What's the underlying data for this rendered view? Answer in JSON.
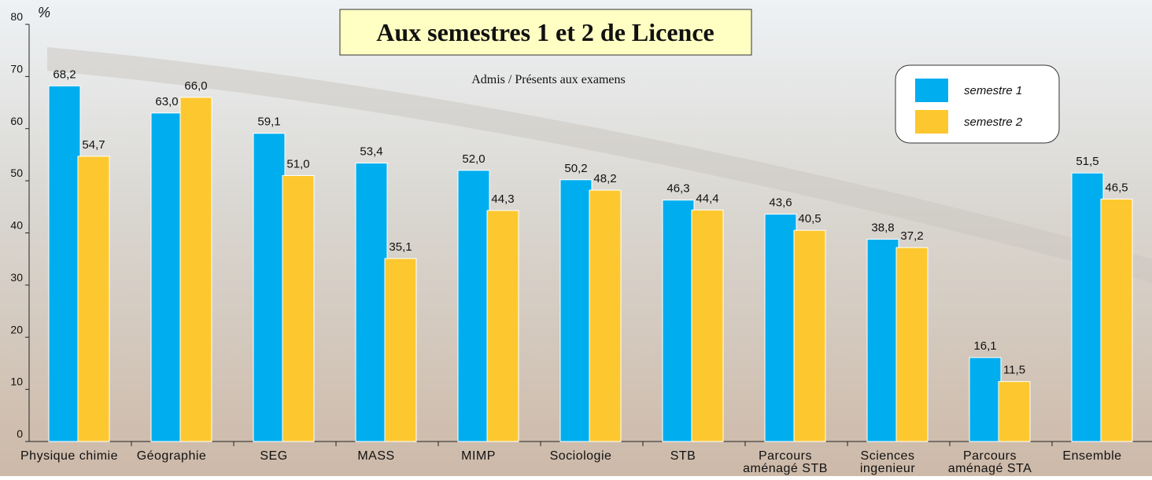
{
  "chart_data": {
    "type": "bar",
    "title": "Aux semestres 1 et 2 de Licence",
    "subtitle": "Admis / Présents aux examens",
    "y_label": "%",
    "categories": [
      "Physique chimie",
      "Géographie",
      "SEG",
      "MASS",
      "MIMP",
      "Sociologie",
      "STB",
      "Parcours\naménagé STB",
      "Sciences\ningenieur",
      "Parcours\naménagé STA",
      "Ensemble"
    ],
    "series": [
      {
        "name": "semestre 1",
        "color": "#00aeef",
        "values": [
          68.2,
          63.0,
          59.1,
          53.4,
          52.0,
          50.2,
          46.3,
          43.6,
          38.8,
          16.1,
          51.5
        ],
        "value_labels": [
          "68,2",
          "63,0",
          "59,1",
          "53,4",
          "52,0",
          "50,2",
          "46,3",
          "43,6",
          "38,8",
          "16,1",
          "51,5"
        ]
      },
      {
        "name": "semestre 2",
        "color": "#fdc82f",
        "values": [
          54.7,
          66.0,
          51.0,
          35.1,
          44.3,
          48.2,
          44.4,
          40.5,
          37.2,
          11.5,
          46.5
        ],
        "value_labels": [
          "54,7",
          "66,0",
          "51,0",
          "35,1",
          "44,3",
          "48,2",
          "44,4",
          "40,5",
          "37,2",
          "11,5",
          "46,5"
        ]
      }
    ],
    "ylim": [
      0,
      80
    ],
    "yticks": [
      0,
      10,
      20,
      30,
      40,
      50,
      60,
      70,
      80
    ]
  }
}
